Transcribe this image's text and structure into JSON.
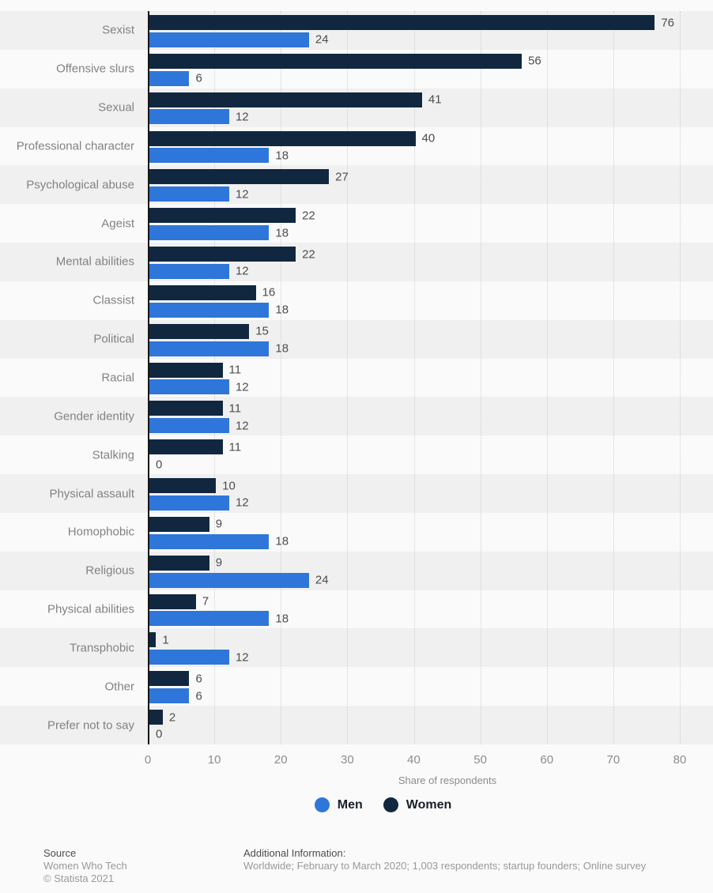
{
  "chart_data": {
    "type": "bar",
    "orientation": "horizontal",
    "categories": [
      "Sexist",
      "Offensive slurs",
      "Sexual",
      "Professional character",
      "Psychological abuse",
      "Ageist",
      "Mental abilities",
      "Classist",
      "Political",
      "Racial",
      "Gender identity",
      "Stalking",
      "Physical assault",
      "Homophobic",
      "Religious",
      "Physical abilities",
      "Transphobic",
      "Other",
      "Prefer not to say"
    ],
    "series": [
      {
        "name": "Women",
        "color": "#112740",
        "values": [
          76,
          56,
          41,
          40,
          27,
          22,
          22,
          16,
          15,
          11,
          11,
          11,
          10,
          9,
          9,
          7,
          1,
          6,
          2
        ]
      },
      {
        "name": "Men",
        "color": "#2e76d9",
        "values": [
          24,
          6,
          12,
          18,
          12,
          18,
          12,
          18,
          18,
          12,
          12,
          0,
          12,
          18,
          24,
          18,
          12,
          6,
          0
        ]
      }
    ],
    "xlabel": "Share of respondents",
    "xlim": [
      0,
      80
    ],
    "xticks": [
      0,
      10,
      20,
      30,
      40,
      50,
      60,
      70,
      80
    ],
    "grid": "vertical dotted gridlines",
    "row_band_colors": [
      "#f0f0f0",
      "#fafafa"
    ],
    "legend_position": "bottom-center",
    "bar_order": "Women bar on top, Men bar below, per category"
  },
  "axis": {
    "xlabel": "Share of respondents"
  },
  "legend": {
    "men_label": "Men",
    "women_label": "Women"
  },
  "footer": {
    "source_title": "Source",
    "source_line1": "Women Who Tech",
    "source_line2": "© Statista 2021",
    "info_title": "Additional Information:",
    "info_line": "Worldwide; February to March 2020; 1,003 respondents; startup founders; Online survey"
  },
  "colors": {
    "men_blue": "#2e76d9",
    "women_navy": "#112740",
    "axis_line": "#161616",
    "band_dark": "#f0f0f0",
    "band_light": "#fafafa"
  }
}
